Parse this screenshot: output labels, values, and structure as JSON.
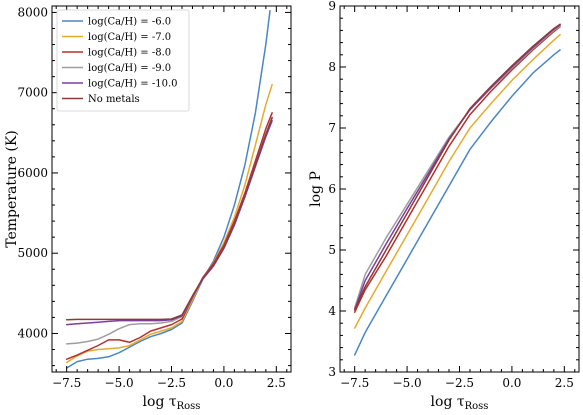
{
  "chart_data": [
    {
      "type": "line",
      "xlabel": "log τ",
      "xlabel_sub": "Ross",
      "ylabel": "Temperature (K)",
      "xlim": [
        -8.2,
        3.2
      ],
      "ylim": [
        3520,
        8080
      ],
      "xticks": [
        -7.5,
        -5.0,
        -2.5,
        0.0,
        2.5
      ],
      "xtick_labels": [
        "−7.5",
        "−5.0",
        "−2.5",
        "0.0",
        "2.5"
      ],
      "yticks": [
        4000,
        5000,
        6000,
        7000,
        8000
      ],
      "ytick_labels": [
        "4000",
        "5000",
        "6000",
        "7000",
        "8000"
      ],
      "legend": "top-left",
      "series": [
        {
          "name": "log(Ca/H) = -6.0",
          "color": "#4a86c5",
          "x": [
            -7.5,
            -7.0,
            -6.5,
            -6.0,
            -5.5,
            -5.0,
            -4.5,
            -4.0,
            -3.5,
            -3.0,
            -2.5,
            -2.0,
            -1.5,
            -1.0,
            -0.5,
            0.0,
            0.5,
            1.0,
            1.5,
            2.0,
            2.2
          ],
          "y": [
            3570,
            3650,
            3680,
            3690,
            3710,
            3760,
            3830,
            3900,
            3960,
            4000,
            4050,
            4130,
            4400,
            4680,
            4900,
            5200,
            5600,
            6100,
            6750,
            7600,
            8020
          ]
        },
        {
          "name": "log(Ca/H) = -7.0",
          "color": "#e8a92f",
          "x": [
            -7.5,
            -7.0,
            -6.5,
            -6.0,
            -5.5,
            -5.0,
            -4.5,
            -4.0,
            -3.5,
            -3.0,
            -2.5,
            -2.0,
            -1.5,
            -1.0,
            -0.5,
            0.0,
            0.5,
            1.0,
            1.5,
            2.0,
            2.3
          ],
          "y": [
            3640,
            3720,
            3780,
            3800,
            3810,
            3820,
            3850,
            3920,
            3990,
            4030,
            4070,
            4150,
            4420,
            4690,
            4880,
            5130,
            5450,
            5850,
            6350,
            6850,
            7100
          ]
        },
        {
          "name": "log(Ca/H) = -8.0",
          "color": "#b4302c",
          "x": [
            -7.5,
            -7.0,
            -6.5,
            -6.0,
            -5.5,
            -5.0,
            -4.5,
            -4.0,
            -3.5,
            -3.0,
            -2.5,
            -2.0,
            -1.5,
            -1.0,
            -0.5,
            0.0,
            0.5,
            1.0,
            1.5,
            2.0,
            2.3
          ],
          "y": [
            3680,
            3730,
            3790,
            3850,
            3920,
            3920,
            3890,
            3950,
            4030,
            4070,
            4110,
            4180,
            4450,
            4700,
            4870,
            5100,
            5400,
            5750,
            6150,
            6550,
            6750
          ]
        },
        {
          "name": "log(Ca/H) = -9.0",
          "color": "#9e9e9e",
          "x": [
            -7.5,
            -7.0,
            -6.5,
            -6.0,
            -5.5,
            -5.0,
            -4.5,
            -4.0,
            -3.5,
            -3.0,
            -2.5,
            -2.0,
            -1.5,
            -1.0,
            -0.5,
            0.0,
            0.5,
            1.0,
            1.5,
            2.0,
            2.3
          ],
          "y": [
            3870,
            3880,
            3900,
            3930,
            3990,
            4060,
            4110,
            4120,
            4120,
            4130,
            4150,
            4210,
            4460,
            4690,
            4850,
            5070,
            5370,
            5720,
            6100,
            6480,
            6680
          ]
        },
        {
          "name": "log(Ca/H) = -10.0",
          "color": "#7b3fa0",
          "x": [
            -7.5,
            -7.0,
            -6.5,
            -6.0,
            -5.5,
            -5.0,
            -4.5,
            -4.0,
            -3.5,
            -3.0,
            -2.5,
            -2.0,
            -1.5,
            -1.0,
            -0.5,
            0.0,
            0.5,
            1.0,
            1.5,
            2.0,
            2.3
          ],
          "y": [
            4110,
            4120,
            4130,
            4140,
            4150,
            4160,
            4160,
            4160,
            4160,
            4160,
            4170,
            4220,
            4460,
            4680,
            4840,
            5060,
            5350,
            5700,
            6080,
            6450,
            6650
          ]
        },
        {
          "name": "No metals",
          "color": "#8c3a3a",
          "x": [
            -7.5,
            -7.0,
            -6.5,
            -6.0,
            -5.5,
            -5.0,
            -4.5,
            -4.0,
            -3.5,
            -3.0,
            -2.5,
            -2.0,
            -1.5,
            -1.0,
            -0.5,
            0.0,
            0.5,
            1.0,
            1.5,
            2.0,
            2.3
          ],
          "y": [
            4170,
            4175,
            4175,
            4175,
            4175,
            4175,
            4175,
            4175,
            4175,
            4175,
            4180,
            4230,
            4470,
            4690,
            4850,
            5070,
            5370,
            5720,
            6100,
            6480,
            6690
          ]
        }
      ]
    },
    {
      "type": "line",
      "xlabel": "log τ",
      "xlabel_sub": "Ross",
      "ylabel": "log P",
      "xlim": [
        -8.2,
        3.2
      ],
      "ylim": [
        3.0,
        9.0
      ],
      "xticks": [
        -7.5,
        -5.0,
        -2.5,
        0.0,
        2.5
      ],
      "xtick_labels": [
        "−7.5",
        "−5.0",
        "−2.5",
        "0.0",
        "2.5"
      ],
      "yticks": [
        3,
        4,
        5,
        6,
        7,
        8,
        9
      ],
      "ytick_labels": [
        "3",
        "4",
        "5",
        "6",
        "7",
        "8",
        "9"
      ],
      "series": [
        {
          "name": "log(Ca/H) = -6.0",
          "color": "#4a86c5",
          "x": [
            -7.5,
            -7.0,
            -6.0,
            -5.0,
            -4.0,
            -3.0,
            -2.0,
            -1.0,
            0.0,
            1.0,
            2.0,
            2.3
          ],
          "y": [
            3.28,
            3.65,
            4.25,
            4.85,
            5.45,
            6.05,
            6.65,
            7.1,
            7.52,
            7.9,
            8.2,
            8.28
          ]
        },
        {
          "name": "log(Ca/H) = -7.0",
          "color": "#e8a92f",
          "x": [
            -7.5,
            -7.0,
            -6.0,
            -5.0,
            -4.0,
            -3.0,
            -2.0,
            -1.0,
            0.0,
            1.0,
            2.0,
            2.3
          ],
          "y": [
            3.72,
            4.05,
            4.65,
            5.25,
            5.85,
            6.45,
            7.0,
            7.4,
            7.78,
            8.12,
            8.44,
            8.53
          ]
        },
        {
          "name": "log(Ca/H) = -8.0",
          "color": "#b4302c",
          "x": [
            -7.5,
            -7.0,
            -6.0,
            -5.0,
            -4.0,
            -3.0,
            -2.0,
            -1.0,
            0.0,
            1.0,
            2.0,
            2.3
          ],
          "y": [
            3.98,
            4.35,
            4.9,
            5.5,
            6.1,
            6.7,
            7.22,
            7.6,
            7.95,
            8.28,
            8.58,
            8.66
          ]
        },
        {
          "name": "log(Ca/H) = -9.0",
          "color": "#9e9e9e",
          "x": [
            -7.5,
            -7.0,
            -6.0,
            -5.0,
            -4.0,
            -3.0,
            -2.0,
            -1.0,
            0.0,
            1.0,
            2.0,
            2.3
          ],
          "y": [
            4.05,
            4.6,
            5.2,
            5.75,
            6.3,
            6.85,
            7.3,
            7.65,
            7.98,
            8.3,
            8.6,
            8.67
          ]
        },
        {
          "name": "log(Ca/H) = -10.0",
          "color": "#7b3fa0",
          "x": [
            -7.5,
            -7.0,
            -6.0,
            -5.0,
            -4.0,
            -3.0,
            -2.0,
            -1.0,
            0.0,
            1.0,
            2.0,
            2.3
          ],
          "y": [
            4.02,
            4.5,
            5.1,
            5.68,
            6.25,
            6.82,
            7.3,
            7.66,
            8.0,
            8.32,
            8.62,
            8.69
          ]
        },
        {
          "name": "No metals",
          "color": "#8c3a3a",
          "x": [
            -7.5,
            -7.0,
            -6.0,
            -5.0,
            -4.0,
            -3.0,
            -2.0,
            -1.0,
            0.0,
            1.0,
            2.0,
            2.3
          ],
          "y": [
            4.02,
            4.4,
            5.0,
            5.6,
            6.2,
            6.8,
            7.32,
            7.68,
            8.02,
            8.34,
            8.63,
            8.7
          ]
        }
      ]
    }
  ]
}
